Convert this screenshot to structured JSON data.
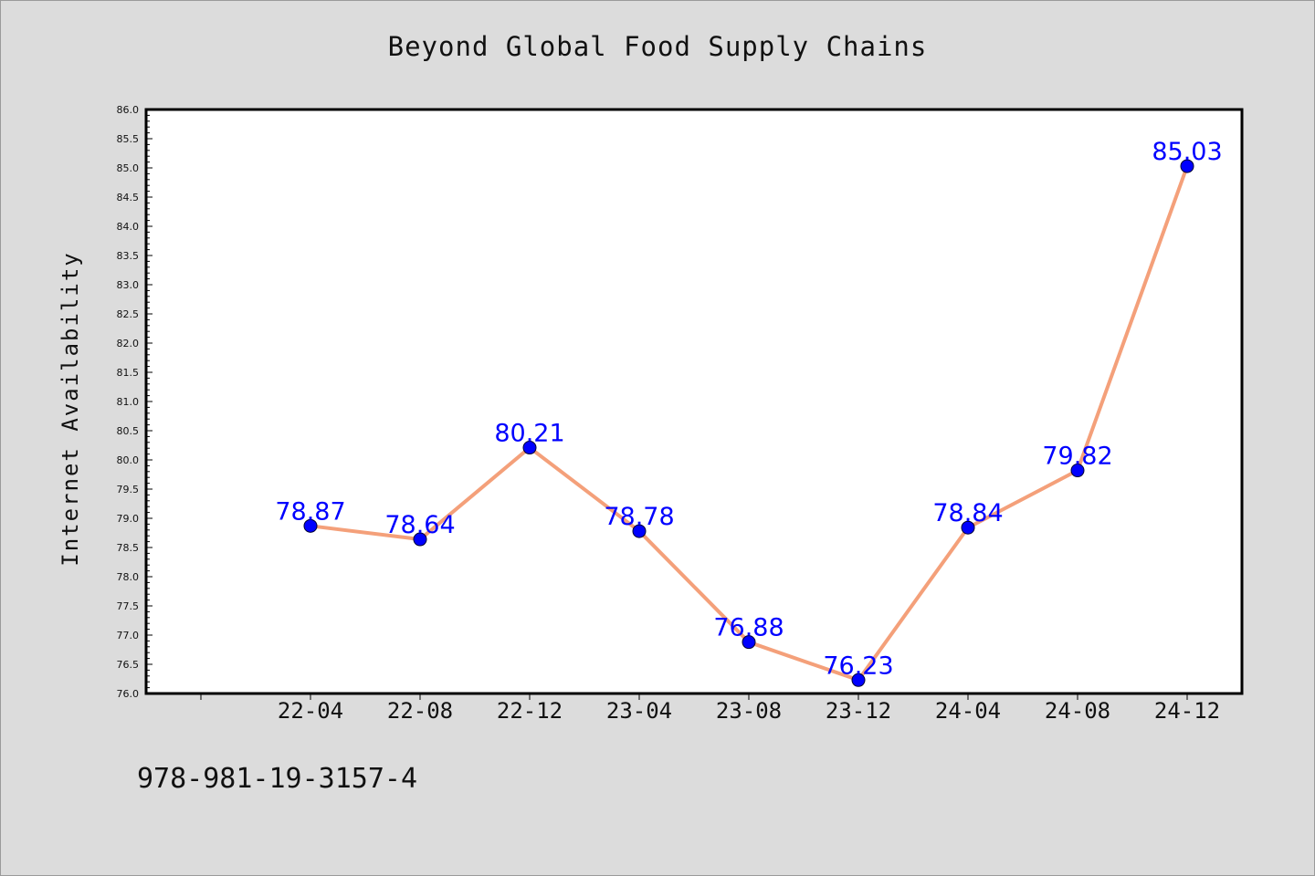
{
  "chart_data": {
    "type": "line",
    "title": "Beyond Global Food Supply Chains",
    "xlabel": "",
    "ylabel": "Internet Availability",
    "categories": [
      "22-04",
      "22-08",
      "22-12",
      "23-04",
      "23-08",
      "23-12",
      "24-04",
      "24-08",
      "24-12"
    ],
    "series": [
      {
        "values": [
          78.87,
          78.64,
          80.21,
          78.78,
          76.88,
          76.23,
          78.84,
          79.82,
          85.03
        ]
      }
    ],
    "ylim": [
      76.0,
      86.0
    ],
    "ytick_step": 0.5,
    "grid": false,
    "legend": "none",
    "line_color": "#f4a07a",
    "marker_color": "#0000ff",
    "label_color": "#0000ff"
  },
  "footer": {
    "code": "978-981-19-3157-4"
  }
}
